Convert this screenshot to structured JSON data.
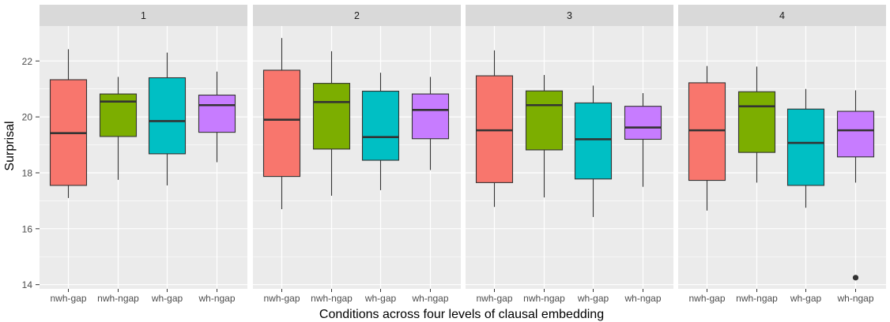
{
  "chart_data": {
    "type": "boxplot",
    "xlabel": "Conditions across four levels of clausal embedding",
    "ylabel": "Surprisal",
    "ylim": [
      13.85,
      23.25
    ],
    "yticks": [
      14,
      16,
      18,
      20,
      22
    ],
    "categories": [
      "nwh-gap",
      "nwh-ngap",
      "wh-gap",
      "wh-ngap"
    ],
    "colors": {
      "nwh-gap": "#F8766D",
      "nwh-ngap": "#7CAE00",
      "wh-gap": "#00BFC4",
      "wh-ngap": "#C77CFF"
    },
    "panel_background": "#EBEBEB",
    "strip_background": "#D9D9D9",
    "grid": true,
    "facets": [
      {
        "label": "1",
        "boxes": [
          {
            "category": "nwh-gap",
            "whisker_low": 17.1,
            "q1": 17.55,
            "median": 19.42,
            "q3": 21.33,
            "whisker_high": 22.42,
            "outliers": []
          },
          {
            "category": "nwh-ngap",
            "whisker_low": 17.75,
            "q1": 19.3,
            "median": 20.55,
            "q3": 20.82,
            "whisker_high": 21.43,
            "outliers": []
          },
          {
            "category": "wh-gap",
            "whisker_low": 17.55,
            "q1": 18.68,
            "median": 19.85,
            "q3": 21.4,
            "whisker_high": 22.3,
            "outliers": []
          },
          {
            "category": "wh-ngap",
            "whisker_low": 18.38,
            "q1": 19.45,
            "median": 20.42,
            "q3": 20.78,
            "whisker_high": 21.62,
            "outliers": []
          }
        ]
      },
      {
        "label": "2",
        "boxes": [
          {
            "category": "nwh-gap",
            "whisker_low": 16.7,
            "q1": 17.87,
            "median": 19.9,
            "q3": 21.67,
            "whisker_high": 22.82,
            "outliers": []
          },
          {
            "category": "nwh-ngap",
            "whisker_low": 17.18,
            "q1": 18.85,
            "median": 20.53,
            "q3": 21.2,
            "whisker_high": 22.35,
            "outliers": []
          },
          {
            "category": "wh-gap",
            "whisker_low": 17.38,
            "q1": 18.45,
            "median": 19.28,
            "q3": 20.92,
            "whisker_high": 21.58,
            "outliers": []
          },
          {
            "category": "wh-ngap",
            "whisker_low": 18.1,
            "q1": 19.22,
            "median": 20.25,
            "q3": 20.82,
            "whisker_high": 21.43,
            "outliers": []
          }
        ]
      },
      {
        "label": "3",
        "boxes": [
          {
            "category": "nwh-gap",
            "whisker_low": 16.78,
            "q1": 17.65,
            "median": 19.52,
            "q3": 21.47,
            "whisker_high": 22.38,
            "outliers": []
          },
          {
            "category": "nwh-ngap",
            "whisker_low": 17.12,
            "q1": 18.82,
            "median": 20.42,
            "q3": 20.93,
            "whisker_high": 21.5,
            "outliers": []
          },
          {
            "category": "wh-gap",
            "whisker_low": 16.42,
            "q1": 17.78,
            "median": 19.2,
            "q3": 20.5,
            "whisker_high": 21.12,
            "outliers": []
          },
          {
            "category": "wh-ngap",
            "whisker_low": 17.5,
            "q1": 19.2,
            "median": 19.62,
            "q3": 20.38,
            "whisker_high": 20.85,
            "outliers": []
          }
        ]
      },
      {
        "label": "4",
        "boxes": [
          {
            "category": "nwh-gap",
            "whisker_low": 16.65,
            "q1": 17.73,
            "median": 19.52,
            "q3": 21.22,
            "whisker_high": 21.82,
            "outliers": []
          },
          {
            "category": "nwh-ngap",
            "whisker_low": 17.65,
            "q1": 18.73,
            "median": 20.38,
            "q3": 20.9,
            "whisker_high": 21.8,
            "outliers": []
          },
          {
            "category": "wh-gap",
            "whisker_low": 16.75,
            "q1": 17.55,
            "median": 19.07,
            "q3": 20.28,
            "whisker_high": 21.0,
            "outliers": []
          },
          {
            "category": "wh-ngap",
            "whisker_low": 17.65,
            "q1": 18.57,
            "median": 19.52,
            "q3": 20.2,
            "whisker_high": 20.95,
            "outliers": [
              14.25
            ]
          }
        ]
      }
    ]
  }
}
